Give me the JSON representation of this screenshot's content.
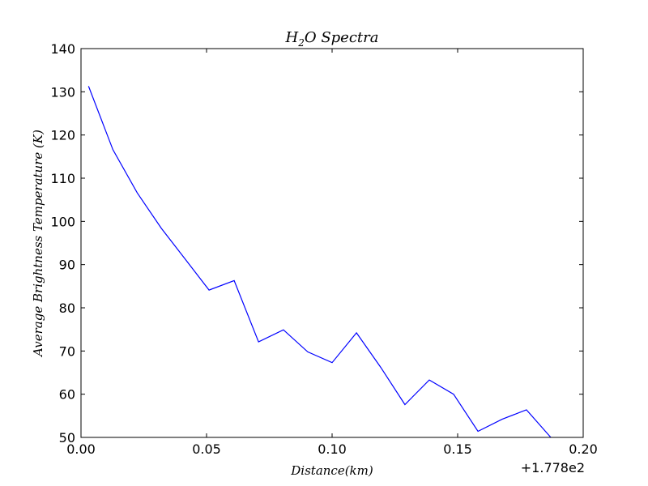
{
  "chart_data": {
    "type": "line",
    "title": "H2O Spectra",
    "title_parts": {
      "base": "H",
      "sub": "2",
      "rest": "O Spectra"
    },
    "xlabel": "Distance(km)",
    "ylabel": "Average Brightness Temperature (K)",
    "x_offset_text": "+1.778e2",
    "xlim": [
      0.0,
      0.2
    ],
    "ylim": [
      50,
      140
    ],
    "xticks": [
      0.0,
      0.05,
      0.1,
      0.15,
      0.2
    ],
    "xtick_labels": [
      "0.00",
      "0.05",
      "0.10",
      "0.15",
      "0.20"
    ],
    "yticks": [
      50,
      60,
      70,
      80,
      90,
      100,
      110,
      120,
      130,
      140
    ],
    "ytick_labels": [
      "50",
      "60",
      "70",
      "80",
      "90",
      "100",
      "110",
      "120",
      "130",
      "140"
    ],
    "grid": false,
    "series": [
      {
        "color": "#0000ff",
        "x": [
          0.003,
          0.0127,
          0.0224,
          0.032,
          0.0417,
          0.051,
          0.061,
          0.0707,
          0.0806,
          0.0903,
          0.1,
          0.1097,
          0.1194,
          0.129,
          0.1387,
          0.1484,
          0.1581,
          0.1677,
          0.1774,
          0.1871
        ],
        "y": [
          131.3,
          116.6,
          106.6,
          98.4,
          91.1,
          84.1,
          86.3,
          72.1,
          74.9,
          69.8,
          67.3,
          74.2,
          66.2,
          57.6,
          63.3,
          60.0,
          51.4,
          54.2,
          56.4,
          50.0
        ]
      }
    ]
  }
}
